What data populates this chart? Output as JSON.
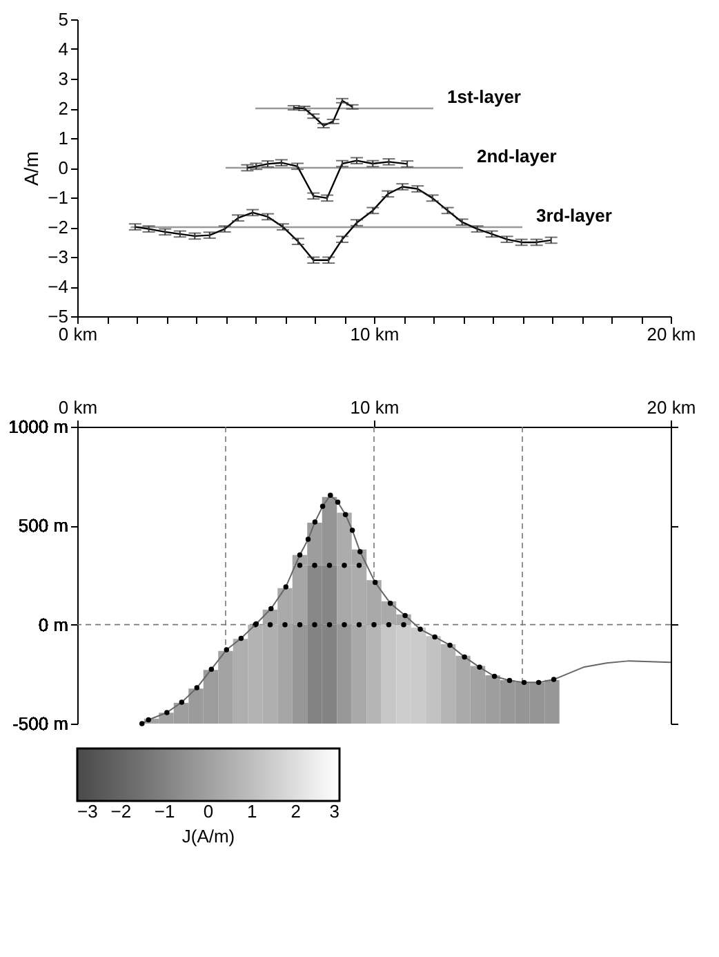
{
  "chart_data": [
    {
      "type": "line",
      "xlim": [
        0,
        20
      ],
      "ylim": [
        -5,
        5
      ],
      "xticks": [
        {
          "value": 0,
          "label": "0 km"
        },
        {
          "value": 1,
          "label": null
        },
        {
          "value": 2,
          "label": null
        },
        {
          "value": 3,
          "label": null
        },
        {
          "value": 4,
          "label": null
        },
        {
          "value": 5,
          "label": null
        },
        {
          "value": 6,
          "label": null
        },
        {
          "value": 7,
          "label": null
        },
        {
          "value": 8,
          "label": null
        },
        {
          "value": 9,
          "label": null
        },
        {
          "value": 10,
          "label": "10 km"
        },
        {
          "value": 11,
          "label": null
        },
        {
          "value": 12,
          "label": null
        },
        {
          "value": 13,
          "label": null
        },
        {
          "value": 14,
          "label": null
        },
        {
          "value": 15,
          "label": null
        },
        {
          "value": 16,
          "label": null
        },
        {
          "value": 17,
          "label": null
        },
        {
          "value": 18,
          "label": null
        },
        {
          "value": 19,
          "label": null
        },
        {
          "value": 20,
          "label": "20 km"
        }
      ],
      "yticks": [
        -5,
        -4,
        -3,
        -2,
        -1,
        0,
        1,
        2,
        3,
        4,
        5
      ],
      "ylabel": "A/m",
      "grid": false,
      "marker": "none",
      "line_style": "solid",
      "series": [
        {
          "color": "#999999",
          "x": [
            6,
            12
          ],
          "values": [
            2,
            2
          ]
        },
        {
          "color": "#999999",
          "x": [
            5,
            13
          ],
          "values": [
            0,
            0
          ]
        },
        {
          "color": "#999999",
          "x": [
            1.8,
            15
          ],
          "values": [
            -2,
            -2
          ]
        },
        {
          "color": "#000000",
          "x": [
            7.3,
            7.65,
            7.96,
            8.3,
            8.62,
            8.93,
            9.27
          ],
          "values": [
            2.02,
            2.0,
            1.74,
            1.42,
            1.56,
            2.26,
            2.05
          ],
          "errors": [
            0.07,
            0.07,
            0.07,
            0.07,
            0.07,
            0.07,
            0.07
          ]
        },
        {
          "color": "#000000",
          "x": [
            5.73,
            6.03,
            6.42,
            6.88,
            7.42,
            7.96,
            8.42,
            8.93,
            9.42,
            9.96,
            10.5,
            11.12
          ],
          "values": [
            0,
            0.05,
            0.13,
            0.17,
            0.05,
            -0.95,
            -1.02,
            0.14,
            0.24,
            0.14,
            0.2,
            0.13
          ],
          "errors": [
            0.1,
            0.1,
            0.1,
            0.1,
            0.1,
            0.1,
            0.1,
            0.1,
            0.1,
            0.1,
            0.1,
            0.1
          ]
        },
        {
          "color": "#000000",
          "x": [
            1.95,
            2.41,
            2.96,
            3.46,
            3.96,
            4.46,
            4.97,
            5.42,
            5.91,
            6.42,
            6.93,
            7.44,
            7.96,
            8.47,
            8.93,
            9.42,
            9.96,
            10.47,
            10.96,
            11.47,
            11.97,
            12.48,
            12.97,
            13.48,
            13.97,
            14.48,
            14.97,
            15.48,
            15.97
          ],
          "values": [
            -1.99,
            -2.06,
            -2.16,
            -2.23,
            -2.3,
            -2.27,
            -2.06,
            -1.69,
            -1.51,
            -1.65,
            -1.99,
            -2.48,
            -3.11,
            -3.11,
            -2.41,
            -1.85,
            -1.44,
            -0.88,
            -0.64,
            -0.71,
            -1.02,
            -1.44,
            -1.83,
            -2.06,
            -2.23,
            -2.41,
            -2.51,
            -2.51,
            -2.44
          ],
          "errors": [
            0.1,
            0.1,
            0.1,
            0.1,
            0.1,
            0.1,
            0.1,
            0.1,
            0.1,
            0.1,
            0.1,
            0.1,
            0.1,
            0.1,
            0.1,
            0.1,
            0.1,
            0.1,
            0.1,
            0.1,
            0.1,
            0.1,
            0.1,
            0.1,
            0.1,
            0.1,
            0.1,
            0.1,
            0.1
          ]
        }
      ],
      "annotations": [
        {
          "text": "1st-layer",
          "x": 12,
          "y": 2
        },
        {
          "text": "2nd-layer",
          "x": 13,
          "y": 0
        },
        {
          "text": "3rd-layer",
          "x": 15,
          "y": -2
        }
      ]
    },
    {
      "type": "bar",
      "xlim": [
        0,
        20
      ],
      "ylim": [
        -500,
        1000
      ],
      "xticks": [
        {
          "value": 0,
          "label": "0 km"
        },
        {
          "value": 10,
          "label": "10 km"
        },
        {
          "value": 20,
          "label": "20 km"
        }
      ],
      "yticks": [
        {
          "value": -500,
          "label": "-500 m"
        },
        {
          "value": 0,
          "label": "0 m"
        },
        {
          "value": 500,
          "label": "500 m"
        },
        {
          "value": 1000,
          "label": "1000 m"
        }
      ],
      "grid": false,
      "clabel": "J(A/m)",
      "clim": [
        -3,
        3
      ],
      "cticks": [
        -3,
        -2,
        -1,
        0,
        1,
        2,
        3
      ],
      "ref_lines": [
        {
          "axis": "x",
          "value": 5,
          "color": "#777777",
          "line_style": "dashed"
        },
        {
          "axis": "x",
          "value": 10,
          "color": "#777777",
          "line_style": "dashed"
        },
        {
          "axis": "x",
          "value": 15,
          "color": "#777777",
          "line_style": "dashed"
        },
        {
          "axis": "y",
          "value": 0,
          "color": "#777777",
          "line_style": "dashed"
        }
      ],
      "series": [
        {
          "type": "bar",
          "x": [
            2.5,
            3,
            3.5,
            4,
            4.5,
            5,
            5.5,
            6,
            6.5,
            7,
            7.5,
            8,
            8.5,
            9,
            9.5,
            10,
            10.5,
            11,
            11.5,
            12,
            12.5,
            13,
            13.5,
            14,
            14.5,
            15,
            15.5,
            16
          ],
          "base": [
            -500,
            -500,
            -500,
            -500,
            -500,
            -500,
            -500,
            -500,
            -500,
            -500,
            -500,
            -500,
            -500,
            -500,
            -500,
            -500,
            -500,
            -500,
            -500,
            -500,
            -500,
            -500,
            -500,
            -500,
            -500,
            -500,
            -500,
            -500
          ],
          "values": [
            25,
            55,
            105,
            177,
            271,
            367,
            428,
            500,
            500,
            500,
            500,
            500,
            500,
            500,
            500,
            500,
            500,
            500,
            485,
            442,
            401,
            343,
            291,
            244,
            220,
            209,
            208,
            221
          ],
          "colors": [
            "#a3a3a3",
            "#a0a0a0",
            "#9e9e9e",
            "#9b9b9b",
            "#9c9c9c",
            "#a3a3a3",
            "#aeaeae",
            "#b3b3b3",
            "#afafaf",
            "#a5a5a5",
            "#969696",
            "#838383",
            "#838383",
            "#989898",
            "#a9a9a9",
            "#b5b5b5",
            "#c6c6c6",
            "#cdcdcd",
            "#cbcbcb",
            "#c2c2c2",
            "#b5b5b5",
            "#aaaaaa",
            "#a3a3a3",
            "#9e9e9e",
            "#989898",
            "#959595",
            "#959595",
            "#979797"
          ]
        },
        {
          "type": "bar",
          "x": [
            6.5,
            7,
            7.5,
            8,
            8.5,
            9,
            9.5,
            10,
            10.5,
            11
          ],
          "base": [
            0,
            0,
            0,
            0,
            0,
            0,
            0,
            0,
            0,
            0
          ],
          "values": [
            76,
            185,
            300,
            300,
            300,
            300,
            300,
            225,
            118,
            52
          ],
          "colors": [
            "#a8a8a8",
            "#aaaaaa",
            "#a6a6a6",
            "#888888",
            "#868686",
            "#a9a9a9",
            "#acacac",
            "#a9a9a9",
            "#aaaaaa",
            "#a8a8a8"
          ]
        },
        {
          "type": "bar",
          "x": [
            7.5,
            8,
            8.5,
            9,
            9.5
          ],
          "base": [
            300,
            300,
            300,
            300,
            300
          ],
          "values": [
            52,
            215,
            345,
            266,
            80
          ],
          "colors": [
            "#a5a5a5",
            "#9d9d9d",
            "#959595",
            "#acacac",
            "#a6a6a6"
          ]
        },
        {
          "type": "scatter",
          "color": "#000000",
          "x": [
            7.5,
            8,
            8.5,
            9,
            9.5
          ],
          "values": [
            300,
            300,
            300,
            300,
            300
          ]
        },
        {
          "type": "scatter",
          "color": "#000000",
          "x": [
            6,
            6.5,
            7,
            7.5,
            8,
            8.5,
            9,
            9.5,
            10,
            10.5,
            11
          ],
          "values": [
            0,
            0,
            0,
            0,
            0,
            0,
            0,
            0,
            0,
            0,
            0
          ]
        },
        {
          "type": "line",
          "color": "#666666",
          "x": [
            2.18,
            2.4,
            3.02,
            3.52,
            4.03,
            4.52,
            5.03,
            5.52,
            6.03,
            6.53,
            7.03,
            7.5,
            7.78,
            8.01,
            8.27,
            8.53,
            8.78,
            9.04,
            9.27,
            9.53,
            10.04,
            10.55,
            11.05,
            11.56,
            12.05,
            12.56,
            13.05,
            13.56,
            14.06,
            14.57,
            15.06,
            15.55,
            16.06,
            17.06,
            17.84,
            18.6,
            20.0
          ],
          "values": [
            -500,
            -481,
            -444,
            -392,
            -319,
            -225,
            -127,
            -69,
            4,
            81,
            191,
            352,
            431,
            519,
            598,
            654,
            619,
            556,
            477,
            369,
            213,
            108,
            46,
            -23,
            -62,
            -104,
            -163,
            -215,
            -261,
            -282,
            -292,
            -292,
            -277,
            -215,
            -194,
            -183,
            -190
          ]
        },
        {
          "type": "scatter",
          "color": "#000000",
          "x": [
            2.18,
            2.4,
            3.02,
            3.52,
            4.03,
            4.52,
            5.03,
            5.52,
            6.03,
            6.53,
            7.03,
            7.5,
            7.78,
            8.01,
            8.27,
            8.53,
            8.78,
            9.04,
            9.27,
            9.53,
            10.04,
            10.55,
            11.05,
            11.56,
            12.05,
            12.56,
            13.05,
            13.56,
            14.06,
            14.57,
            15.06,
            15.55,
            16.06
          ],
          "values": [
            -500,
            -481,
            -444,
            -392,
            -319,
            -225,
            -127,
            -69,
            4,
            81,
            191,
            352,
            431,
            519,
            598,
            654,
            619,
            556,
            477,
            369,
            213,
            108,
            46,
            -23,
            -62,
            -104,
            -163,
            -215,
            -261,
            -282,
            -292,
            -292,
            -277
          ]
        }
      ]
    }
  ]
}
